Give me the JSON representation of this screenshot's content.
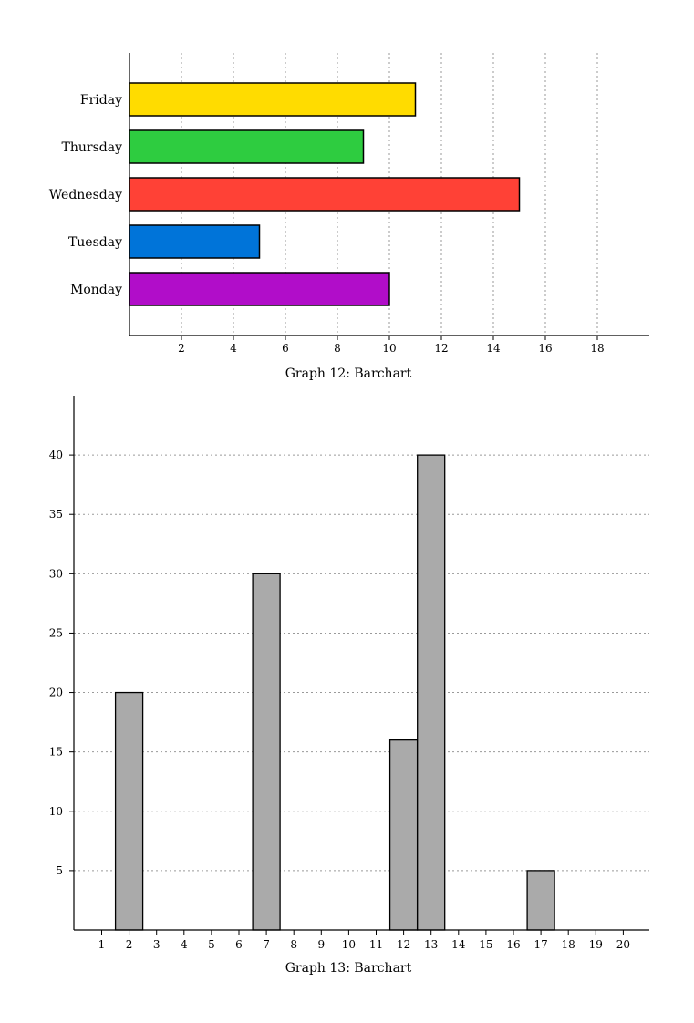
{
  "chart_data": [
    {
      "type": "bar",
      "orientation": "horizontal",
      "title": "Graph 12: Barchart",
      "categories": [
        "Monday",
        "Tuesday",
        "Wednesday",
        "Thursday",
        "Friday"
      ],
      "values": [
        10,
        5,
        15,
        9,
        11
      ],
      "colors": [
        "#b10dc9",
        "#0074d9",
        "#ff4136",
        "#2ecc40",
        "#ffdc00"
      ],
      "xlim": [
        0,
        20
      ],
      "xticks": [
        2,
        4,
        6,
        8,
        10,
        12,
        14,
        16,
        18
      ],
      "grid": "vertical-dotted",
      "xlabel": "",
      "ylabel": ""
    },
    {
      "type": "bar",
      "orientation": "vertical",
      "title": "Graph 13: Barchart",
      "categories": [
        "1",
        "2",
        "3",
        "4",
        "5",
        "6",
        "7",
        "8",
        "9",
        "10",
        "11",
        "12",
        "13",
        "14",
        "15",
        "16",
        "17",
        "18",
        "19",
        "20"
      ],
      "values": [
        0,
        20,
        0,
        0,
        0,
        0,
        30,
        0,
        0,
        0,
        0,
        16,
        40,
        0,
        0,
        0,
        5,
        0,
        0,
        0
      ],
      "color": "#aaaaaa",
      "ylim": [
        0,
        45
      ],
      "yticks": [
        5,
        10,
        15,
        20,
        25,
        30,
        35,
        40
      ],
      "grid": "horizontal-dotted",
      "xlabel": "",
      "ylabel": ""
    }
  ]
}
